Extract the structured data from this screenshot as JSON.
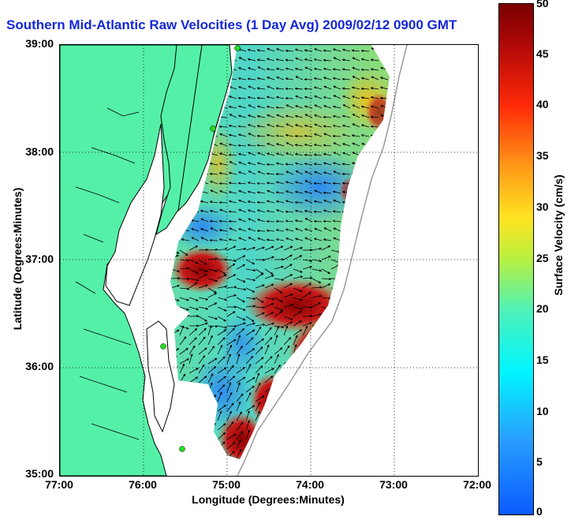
{
  "title": "Southern Mid-Atlantic Raw Velocities (1 Day Avg) 2009/02/12 0900 GMT",
  "xaxis": {
    "label": "Longitude (Degrees:Minutes)",
    "ticks": [
      "77:00",
      "76:00",
      "75:00",
      "74:00",
      "73:00",
      "72:00"
    ],
    "range": [
      -77,
      -72
    ]
  },
  "yaxis": {
    "label": "Latitude (Degrees:Minutes)",
    "ticks": [
      "39:00",
      "38:00",
      "37:00",
      "36:00",
      "35:00"
    ],
    "range": [
      35,
      39
    ]
  },
  "colorbar": {
    "label": "Surface Velocity (cm/s)",
    "ticks": [
      "50",
      "45",
      "40",
      "35",
      "30",
      "25",
      "20",
      "15",
      "10",
      "5",
      "0"
    ],
    "range": [
      0,
      50
    ]
  },
  "colors": {
    "title": "#1428d8",
    "land": "#55f0a8",
    "coastline": "#000000",
    "grid": "#000000",
    "bathymetry_contour": "#9a9a9a",
    "station_marker": "#22dd22"
  },
  "grid": "dotted"
}
